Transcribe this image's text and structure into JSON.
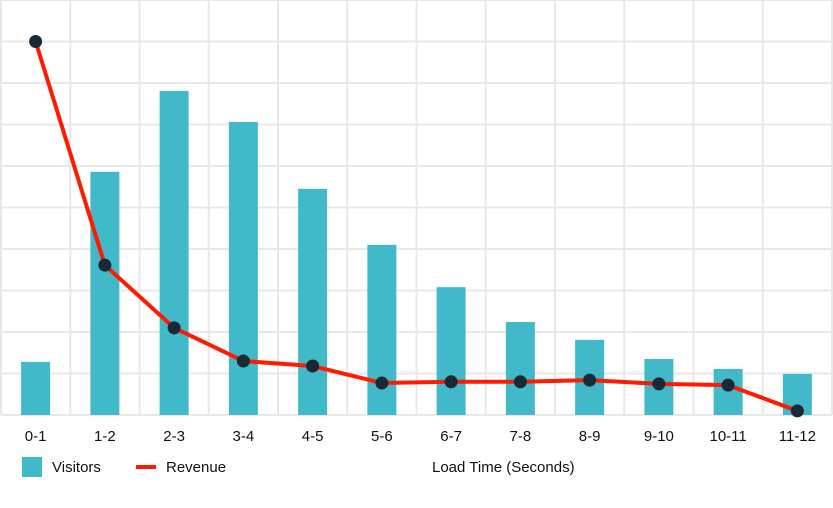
{
  "chart_data": {
    "type": "bar+line",
    "title": "",
    "xlabel": "Load Time (Seconds)",
    "ylabel": "",
    "categories": [
      "0-1",
      "1-2",
      "2-3",
      "3-4",
      "4-5",
      "5-6",
      "6-7",
      "7-8",
      "8-9",
      "9-10",
      "10-11",
      "11-12"
    ],
    "series": [
      {
        "name": "Visitors",
        "type": "bar",
        "color": "#42b9c8",
        "values": [
          1.28,
          5.86,
          7.81,
          7.06,
          5.45,
          4.1,
          3.08,
          2.24,
          1.81,
          1.35,
          1.11,
          0.99
        ]
      },
      {
        "name": "Revenue",
        "type": "line",
        "color": "#ff1a00",
        "marker_color": "#172a36",
        "values": [
          9.0,
          3.61,
          2.1,
          1.3,
          1.18,
          0.77,
          0.8,
          0.8,
          0.84,
          0.75,
          0.72,
          0.1
        ]
      }
    ],
    "ylim": [
      0,
      10
    ],
    "y_gridlines": 10,
    "grid": true,
    "y_tick_labels_visible": false,
    "legend_position": "bottom-left"
  },
  "legend": {
    "items": [
      {
        "label": "Visitors",
        "color": "#42b9c8",
        "kind": "swatch"
      },
      {
        "label": "Revenue",
        "color": "#ff1a00",
        "kind": "line"
      }
    ]
  },
  "axis": {
    "x_title": "Load Time (Seconds)"
  },
  "colors": {
    "grid": "#e8e8e8",
    "bar": "#42b9c8",
    "line": "#ff1a00",
    "marker": "#172a36"
  }
}
